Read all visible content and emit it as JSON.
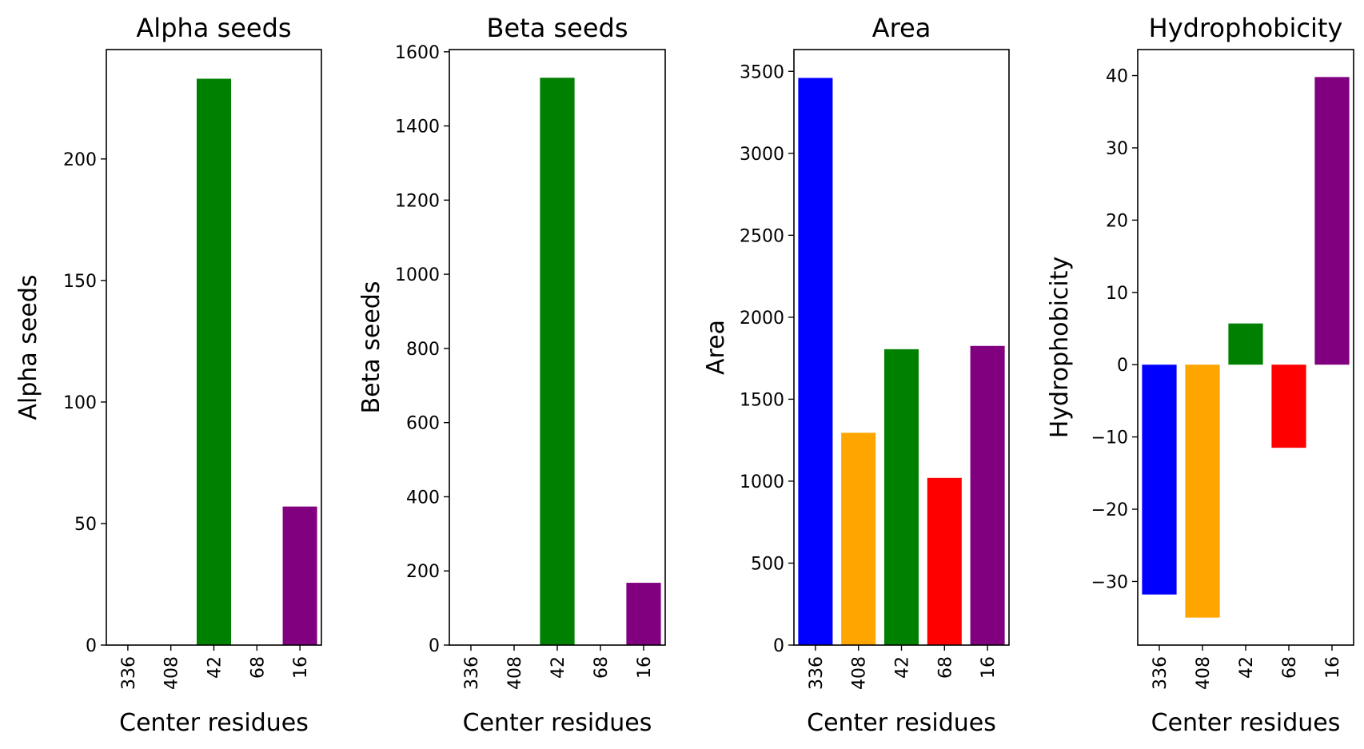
{
  "chart_data": [
    {
      "type": "bar",
      "title": "Alpha seeds",
      "xlabel": "Center residues",
      "ylabel": "Alpha seeds",
      "categories": [
        "336",
        "408",
        "42",
        "68",
        "16"
      ],
      "values": [
        0,
        0,
        233,
        0,
        57
      ],
      "colors": [
        "#0000ff",
        "#ffa500",
        "#008000",
        "#ff0000",
        "#800080"
      ],
      "ylim": [
        0,
        245
      ],
      "yticks": [
        0,
        50,
        100,
        150,
        200
      ],
      "ytick_labels": [
        "0",
        "50",
        "100",
        "150",
        "200"
      ]
    },
    {
      "type": "bar",
      "title": "Beta seeds",
      "xlabel": "Center residues",
      "ylabel": "Beta seeds",
      "categories": [
        "336",
        "408",
        "42",
        "68",
        "16"
      ],
      "values": [
        0,
        0,
        1530,
        0,
        168
      ],
      "colors": [
        "#0000ff",
        "#ffa500",
        "#008000",
        "#ff0000",
        "#800080"
      ],
      "ylim": [
        0,
        1606
      ],
      "yticks": [
        0,
        200,
        400,
        600,
        800,
        1000,
        1200,
        1400,
        1600
      ],
      "ytick_labels": [
        "0",
        "200",
        "400",
        "600",
        "800",
        "1000",
        "1200",
        "1400",
        "1600"
      ]
    },
    {
      "type": "bar",
      "title": "Area",
      "xlabel": "Center residues",
      "ylabel": "Area",
      "categories": [
        "336",
        "408",
        "42",
        "68",
        "16"
      ],
      "values": [
        3460,
        1295,
        1805,
        1020,
        1825
      ],
      "colors": [
        "#0000ff",
        "#ffa500",
        "#008000",
        "#ff0000",
        "#800080"
      ],
      "ylim": [
        0,
        3633
      ],
      "yticks": [
        0,
        500,
        1000,
        1500,
        2000,
        2500,
        3000,
        3500
      ],
      "ytick_labels": [
        "0",
        "500",
        "1000",
        "1500",
        "2000",
        "2500",
        "3000",
        "3500"
      ]
    },
    {
      "type": "bar",
      "title": "Hydrophobicity",
      "xlabel": "Center residues",
      "ylabel": "Hydrophobicity",
      "categories": [
        "336",
        "408",
        "42",
        "68",
        "16"
      ],
      "values": [
        -31.8,
        -35.0,
        5.7,
        -11.5,
        39.8
      ],
      "colors": [
        "#0000ff",
        "#ffa500",
        "#008000",
        "#ff0000",
        "#800080"
      ],
      "ylim": [
        -38.8,
        43.6
      ],
      "yticks": [
        -30,
        -20,
        -10,
        0,
        10,
        20,
        30,
        40
      ],
      "ytick_labels": [
        "−30",
        "−20",
        "−10",
        "0",
        "10",
        "20",
        "30",
        "40"
      ]
    }
  ]
}
